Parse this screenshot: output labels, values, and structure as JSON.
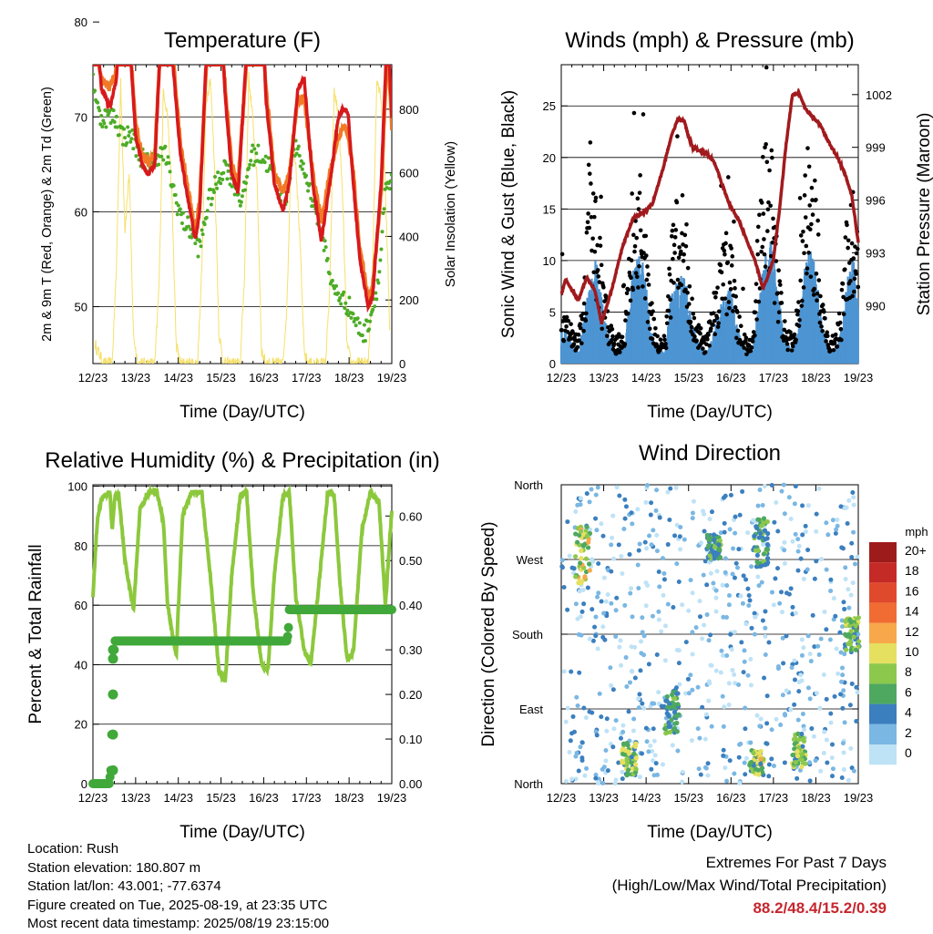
{
  "x_ticks": [
    "12/23",
    "13/23",
    "14/23",
    "15/23",
    "16/23",
    "17/23",
    "18/23",
    "19/23"
  ],
  "x_label": "Time (Day/UTC)",
  "chart_data": [
    {
      "type": "line",
      "title": "Temperature (F)",
      "xlabel": "Time (Day/UTC)",
      "ylabel": "2m & 9m T (Red, Orange) & 2m Td (Green)",
      "ylabel_right": "Solar Insolation (Yellow)",
      "ylim": [
        44,
        75.5
      ],
      "ylim_right": [
        0,
        940
      ],
      "y_ticks": [
        50,
        60,
        70,
        80
      ],
      "y_ticks_right": [
        0,
        200,
        400,
        600,
        800
      ],
      "colors": {
        "t2m": "#d7191c",
        "t9m": "#f07a26",
        "td": "#4dac26",
        "solar": "#f6e06a"
      },
      "series": [
        {
          "key": "t2m",
          "x": [
            12.0,
            12.1,
            12.2,
            12.4,
            12.55,
            12.65,
            12.75,
            12.9,
            13.0,
            13.15,
            13.3,
            13.45,
            13.6,
            13.75,
            13.9,
            14.05,
            14.2,
            14.4,
            14.5,
            14.65,
            14.8,
            14.95,
            15.1,
            15.25,
            15.4,
            15.6,
            15.8,
            15.95,
            16.05,
            16.25,
            16.45,
            16.6,
            16.8,
            16.95,
            17.15,
            17.35,
            17.55,
            17.75,
            17.9,
            17.98,
            18.1,
            18.25,
            18.45,
            18.55,
            18.75,
            18.9,
            19.0
          ],
          "values": [
            86,
            78,
            73,
            71,
            74,
            82,
            84,
            75,
            68,
            65,
            64,
            65,
            80,
            84,
            74,
            66,
            62,
            57,
            60,
            76,
            86,
            85,
            72,
            64,
            62,
            77,
            88,
            85,
            72,
            63,
            60,
            63,
            73,
            74,
            63,
            57,
            63,
            70,
            71,
            70,
            63,
            55,
            50,
            51,
            63,
            80,
            70
          ]
        },
        {
          "key": "t9m",
          "x": [
            12.0,
            12.1,
            12.2,
            12.4,
            12.55,
            12.65,
            12.75,
            12.9,
            13.0,
            13.15,
            13.3,
            13.45,
            13.6,
            13.75,
            13.9,
            14.05,
            14.2,
            14.4,
            14.5,
            14.65,
            14.8,
            14.95,
            15.1,
            15.25,
            15.4,
            15.6,
            15.8,
            15.95,
            16.05,
            16.25,
            16.45,
            16.6,
            16.8,
            16.95,
            17.15,
            17.35,
            17.55,
            17.75,
            17.9,
            17.98,
            18.1,
            18.25,
            18.45,
            18.55,
            18.75,
            18.9,
            19.0
          ],
          "values": [
            85,
            77,
            74,
            73,
            75,
            81,
            82,
            76,
            69,
            66,
            65,
            66,
            79,
            82,
            75,
            67,
            63,
            58,
            61,
            75,
            84,
            83,
            73,
            65,
            63,
            76,
            86,
            83,
            73,
            64,
            62,
            64,
            72,
            72,
            64,
            59,
            64,
            68,
            69,
            68,
            64,
            56,
            51,
            52,
            62,
            78,
            69
          ]
        },
        {
          "key": "td",
          "x": [
            12.0,
            12.15,
            12.3,
            12.5,
            12.7,
            12.9,
            13.1,
            13.3,
            13.5,
            13.7,
            13.9,
            14.1,
            14.3,
            14.5,
            14.7,
            14.9,
            15.1,
            15.3,
            15.5,
            15.7,
            15.9,
            16.1,
            16.3,
            16.5,
            16.7,
            16.9,
            17.1,
            17.3,
            17.5,
            17.6,
            17.8,
            18.0,
            18.2,
            18.35,
            18.5,
            18.7,
            18.85,
            19.0
          ],
          "values": [
            74,
            70,
            70,
            70,
            68,
            68,
            66,
            65,
            66,
            66,
            62,
            59,
            58,
            56,
            61,
            63,
            65,
            63,
            61,
            66,
            66,
            65,
            63,
            61,
            67,
            65,
            62,
            59,
            55,
            52,
            51,
            50,
            48,
            47,
            49,
            53,
            62,
            63
          ]
        },
        {
          "key": "solar",
          "x": [
            12.05,
            12.25,
            12.45,
            12.55,
            12.65,
            12.75,
            12.85,
            12.95,
            13.05,
            13.25,
            13.45,
            13.55,
            13.65,
            13.75,
            13.85,
            13.95,
            14.05,
            14.25,
            14.45,
            14.55,
            14.65,
            14.75,
            14.85,
            14.95,
            15.05,
            15.25,
            15.45,
            15.55,
            15.65,
            15.75,
            15.85,
            15.95,
            16.05,
            16.25,
            16.45,
            16.55,
            16.65,
            16.75,
            16.85,
            16.95,
            17.05,
            17.25,
            17.45,
            17.55,
            17.65,
            17.75,
            17.85,
            17.95,
            18.05,
            18.25,
            18.45,
            18.55,
            18.65,
            18.75,
            18.85,
            18.95
          ],
          "values": [
            60,
            0,
            0,
            300,
            880,
            420,
            600,
            90,
            0,
            0,
            0,
            250,
            860,
            780,
            520,
            60,
            0,
            0,
            0,
            300,
            820,
            900,
            620,
            100,
            0,
            0,
            0,
            280,
            900,
            760,
            560,
            40,
            0,
            0,
            0,
            200,
            720,
            640,
            380,
            30,
            0,
            0,
            0,
            240,
            860,
            780,
            520,
            60,
            0,
            0,
            0,
            300,
            900,
            840,
            560,
            120
          ]
        }
      ]
    },
    {
      "type": "line",
      "title": "Winds (mph) & Pressure (mb)",
      "xlabel": "Time (Day/UTC)",
      "ylabel": "Sonic Wind & Gust (Blue, Black)",
      "ylabel_right": "Station Pressure (Maroon)",
      "ylim": [
        0,
        29
      ],
      "ylim_right": [
        986.7,
        1003.7
      ],
      "y_ticks": [
        0,
        5,
        10,
        15,
        20,
        25
      ],
      "y_ticks_right": [
        990,
        993,
        996,
        999,
        1002
      ],
      "colors": {
        "wind": "#4d94d2",
        "gust": "#000000",
        "pressure": "#a11a1d"
      },
      "series": [
        {
          "key": "pressure",
          "x": [
            12.0,
            12.1,
            12.25,
            12.4,
            12.6,
            12.8,
            12.95,
            13.2,
            13.45,
            13.7,
            13.95,
            14.15,
            14.4,
            14.6,
            14.75,
            14.9,
            15.0,
            15.1,
            15.25,
            15.45,
            15.6,
            15.75,
            15.95,
            16.2,
            16.4,
            16.55,
            16.75,
            16.85,
            17.0,
            17.15,
            17.3,
            17.45,
            17.6,
            17.75,
            17.9,
            18.1,
            18.3,
            18.5,
            18.7,
            18.85,
            19.0
          ],
          "values": [
            990.6,
            991.5,
            990.9,
            990.3,
            991.6,
            990.8,
            989.0,
            991.0,
            993.4,
            995.0,
            995.3,
            995.8,
            997.8,
            999.7,
            1000.6,
            1000.5,
            999.6,
            999.0,
            998.8,
            998.6,
            998.2,
            997.2,
            995.8,
            994.8,
            993.5,
            992.7,
            991.0,
            991.5,
            992.6,
            995.6,
            999.2,
            1002.0,
            1002.1,
            1001.2,
            1000.8,
            1000.3,
            999.3,
            998.5,
            997.4,
            996.2,
            993.6
          ]
        },
        {
          "key": "wind",
          "x": [
            12.0,
            12.2,
            12.4,
            12.55,
            12.7,
            12.85,
            13.0,
            13.15,
            13.3,
            13.5,
            13.65,
            13.8,
            13.95,
            14.1,
            14.3,
            14.45,
            14.6,
            14.75,
            14.9,
            15.05,
            15.2,
            15.4,
            15.55,
            15.7,
            15.85,
            16.0,
            16.15,
            16.35,
            16.5,
            16.65,
            16.8,
            16.95,
            17.1,
            17.3,
            17.45,
            17.55,
            17.7,
            17.85,
            18.0,
            18.15,
            18.3,
            18.45,
            18.6,
            18.75,
            18.9,
            19.0
          ],
          "values": [
            3,
            2,
            1,
            4,
            8,
            9,
            4,
            2,
            1,
            2,
            7,
            9,
            8,
            3,
            1,
            1,
            6,
            7,
            8,
            4,
            2,
            1,
            2,
            4,
            6,
            6,
            3,
            1,
            1,
            5,
            9,
            10,
            6,
            2,
            1,
            2,
            7,
            10,
            8,
            3,
            1,
            1,
            3,
            7,
            9,
            5
          ]
        },
        {
          "key": "gust",
          "x": [
            12.0,
            12.2,
            12.4,
            12.55,
            12.65,
            12.8,
            13.0,
            13.15,
            13.3,
            13.5,
            13.65,
            13.8,
            13.95,
            14.1,
            14.3,
            14.45,
            14.6,
            14.75,
            14.9,
            15.05,
            15.2,
            15.4,
            15.55,
            15.7,
            15.85,
            16.0,
            16.15,
            16.35,
            16.5,
            16.65,
            16.8,
            16.95,
            17.1,
            17.3,
            17.45,
            17.55,
            17.7,
            17.85,
            18.0,
            18.15,
            18.3,
            18.45,
            18.6,
            18.75,
            18.9,
            19.0
          ],
          "values": [
            5,
            3,
            2,
            6,
            17,
            13,
            6,
            3,
            2,
            3,
            12,
            15,
            13,
            5,
            2,
            2,
            11,
            12,
            13,
            6,
            3,
            2,
            4,
            8,
            10,
            9,
            4,
            2,
            2,
            11,
            17,
            16,
            8,
            3,
            2,
            4,
            12,
            17,
            13,
            5,
            2,
            2,
            5,
            12,
            14,
            8
          ]
        }
      ]
    },
    {
      "type": "line",
      "title": "Relative Humidity (%) & Precipitation (in)",
      "xlabel": "Time (Day/UTC)",
      "ylabel": "Percent & Total Rainfall",
      "ylim": [
        0,
        100.5
      ],
      "ylim_right": [
        0,
        0.67
      ],
      "y_ticks": [
        0,
        20,
        40,
        60,
        80,
        100
      ],
      "y_ticks_right": [
        "0.00",
        "0.10",
        "0.20",
        "0.30",
        "0.40",
        "0.50",
        "0.60"
      ],
      "colors": {
        "rh": "#8cc83c",
        "precip": "#41a83a"
      },
      "series": [
        {
          "key": "rh",
          "x": [
            12.0,
            12.1,
            12.2,
            12.4,
            12.45,
            12.52,
            12.6,
            12.75,
            12.95,
            13.1,
            13.3,
            13.5,
            13.65,
            13.75,
            13.95,
            14.1,
            14.3,
            14.55,
            14.75,
            14.95,
            15.1,
            15.25,
            15.45,
            15.6,
            15.75,
            15.95,
            16.1,
            16.25,
            16.45,
            16.6,
            16.75,
            16.95,
            17.1,
            17.3,
            17.5,
            17.65,
            17.8,
            17.95,
            18.1,
            18.3,
            18.5,
            18.7,
            18.85,
            19.0
          ],
          "values": [
            63,
            88,
            96,
            98,
            85,
            97,
            98,
            75,
            58,
            92,
            98,
            98,
            88,
            60,
            43,
            90,
            98,
            98,
            70,
            38,
            34,
            70,
            97,
            98,
            65,
            40,
            38,
            70,
            97,
            98,
            63,
            45,
            40,
            68,
            98,
            97,
            65,
            42,
            44,
            85,
            98,
            95,
            60,
            92
          ]
        },
        {
          "key": "precip",
          "x": [
            12.0,
            12.38,
            12.42,
            12.44,
            12.46,
            12.48,
            12.5,
            12.52,
            16.55,
            16.58,
            16.6,
            19.0
          ],
          "values": [
            0,
            0,
            0.03,
            0.11,
            0.2,
            0.28,
            0.3,
            0.32,
            0.32,
            0.35,
            0.39,
            0.39
          ]
        }
      ]
    },
    {
      "type": "scatter",
      "title": "Wind Direction",
      "xlabel": "Time (Day/UTC)",
      "ylabel": "Direction (Colored By Speed)",
      "y_ticks": [
        "North",
        "East",
        "South",
        "West",
        "North"
      ],
      "colorbar_title": "mph",
      "colorbar_labels": [
        "20+",
        "18",
        "16",
        "14",
        "12",
        "10",
        "8",
        "6",
        "4",
        "2",
        "0"
      ],
      "colorbar_colors": [
        "#9e1b1b",
        "#c42a26",
        "#e04a2c",
        "#f06c32",
        "#f7a84a",
        "#e6e060",
        "#8cc84c",
        "#4ea860",
        "#3b7fbf",
        "#7ab7e3",
        "#bee2f6"
      ]
    }
  ],
  "info": {
    "location": "Location: Rush",
    "elevation": "Station elevation: 180.807 m",
    "latlon": "Station lat/lon: 43.001; -77.6374",
    "created": "Figure created on Tue, 2025-08-19, at 23:35 UTC",
    "recent": "Most recent data timestamp: 2025/08/19 23:15:00"
  },
  "extremes": {
    "title": "Extremes For Past 7 Days",
    "subtitle": "(High/Low/Max Wind/Total Precipitation)",
    "values": "88.2/48.4/15.2/0.39"
  }
}
